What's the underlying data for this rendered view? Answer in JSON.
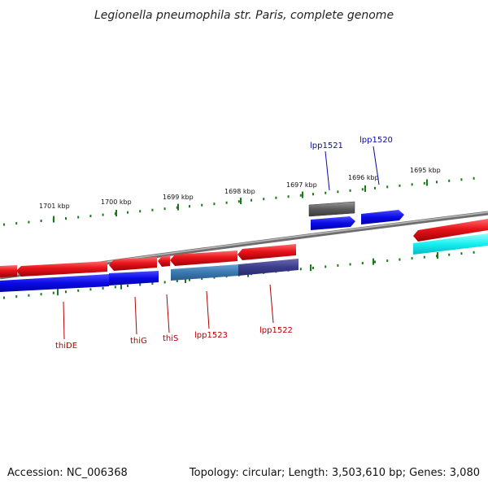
{
  "title": "Legionella pneumophila str. Paris, complete genome",
  "footer": {
    "accession": "Accession: NC_006368",
    "topology": "Topology: circular; Length: 3,503,610 bp; Genes: 3,080"
  },
  "colors": {
    "backbone": "#8a8a8a",
    "tick": "#1a7a1a",
    "red_gene": "#e8141a",
    "blue_gene": "#0a0ae6",
    "cyan_gene": "#16f0f0",
    "gray_gene": "#5a5a5a",
    "steel_gene": "#3a78b0",
    "slate_gene": "#3c3c8c",
    "label_red": "#b00000",
    "label_blue": "#0a0aa0"
  },
  "scale": {
    "labels": [
      "1701 kbp",
      "1700 kbp",
      "1699 kbp",
      "1698 kbp",
      "1697 kbp",
      "1696 kbp",
      "1695 kbp"
    ]
  },
  "gene_labels": {
    "top": [
      "lpp1521",
      "lpp1520"
    ],
    "bottom": [
      "thiDE",
      "thiG",
      "thiS",
      "lpp1523",
      "lpp1522"
    ]
  }
}
